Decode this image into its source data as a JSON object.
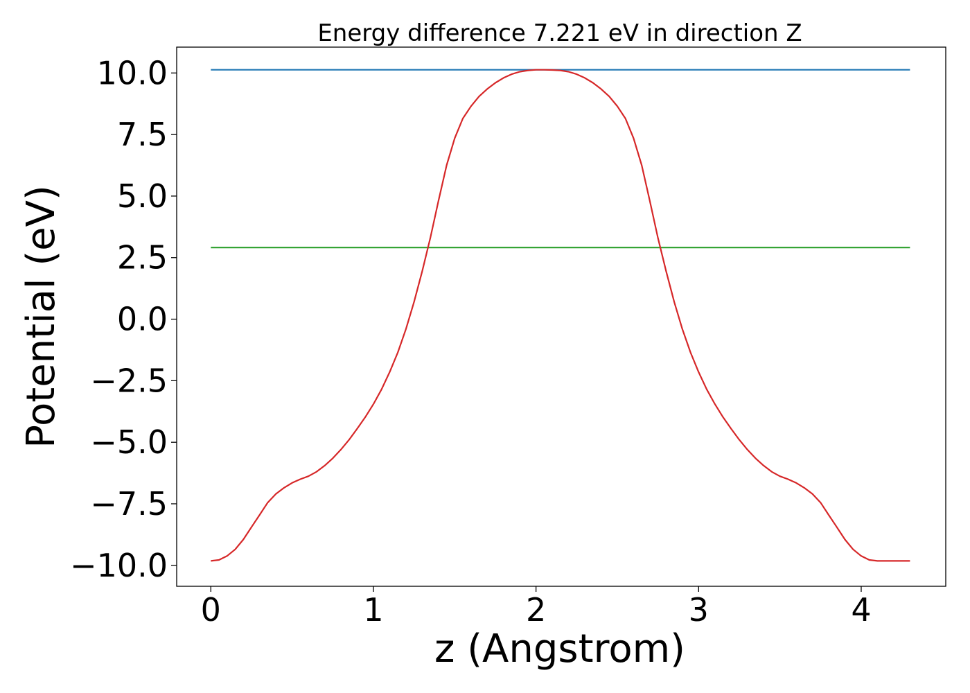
{
  "chart_data": {
    "type": "line",
    "title": "Energy difference 7.221 eV in direction Z",
    "xlabel": "z (Angstrom)",
    "ylabel": "Potential (eV)",
    "xlim": [
      -0.21,
      4.52
    ],
    "ylim": [
      -10.85,
      11.05
    ],
    "x_ticks": [
      0,
      1,
      2,
      3,
      4
    ],
    "x_tick_labels": [
      "0",
      "1",
      "2",
      "3",
      "4"
    ],
    "y_ticks": [
      10.0,
      7.5,
      5.0,
      2.5,
      0.0,
      -2.5,
      -5.0,
      -7.5,
      -10.0
    ],
    "y_tick_labels": [
      "10.0",
      "7.5",
      "5.0",
      "2.5",
      "0.0",
      "−2.5",
      "−5.0",
      "−7.5",
      "−10.0"
    ],
    "grid": false,
    "series": [
      {
        "color": "#1f77b4",
        "x": [
          0.0,
          4.3
        ],
        "y": [
          10.13,
          10.13
        ]
      },
      {
        "color": "#2ca02c",
        "x": [
          0.0,
          4.3
        ],
        "y": [
          2.91,
          2.91
        ]
      },
      {
        "color": "#d62728",
        "x": [
          0.0,
          0.05,
          0.1,
          0.15,
          0.2,
          0.25,
          0.3,
          0.35,
          0.4,
          0.45,
          0.5,
          0.55,
          0.6,
          0.65,
          0.7,
          0.75,
          0.8,
          0.85,
          0.9,
          0.95,
          1.0,
          1.05,
          1.1,
          1.15,
          1.2,
          1.25,
          1.3,
          1.35,
          1.4,
          1.45,
          1.5,
          1.55,
          1.6,
          1.65,
          1.7,
          1.75,
          1.8,
          1.85,
          1.9,
          1.95,
          2.0,
          2.05,
          2.1,
          2.15,
          2.2,
          2.25,
          2.3,
          2.35,
          2.4,
          2.45,
          2.5,
          2.55,
          2.6,
          2.65,
          2.7,
          2.75,
          2.8,
          2.85,
          2.9,
          2.95,
          3.0,
          3.05,
          3.1,
          3.15,
          3.2,
          3.25,
          3.3,
          3.35,
          3.4,
          3.45,
          3.5,
          3.55,
          3.6,
          3.65,
          3.7,
          3.75,
          3.8,
          3.85,
          3.9,
          3.95,
          4.0,
          4.05,
          4.1,
          4.15,
          4.2,
          4.25,
          4.3
        ],
        "y": [
          -9.82,
          -9.78,
          -9.62,
          -9.35,
          -8.95,
          -8.45,
          -7.95,
          -7.45,
          -7.1,
          -6.85,
          -6.65,
          -6.5,
          -6.38,
          -6.2,
          -5.95,
          -5.65,
          -5.3,
          -4.9,
          -4.45,
          -3.98,
          -3.45,
          -2.85,
          -2.15,
          -1.35,
          -0.4,
          0.7,
          1.95,
          3.3,
          4.8,
          6.25,
          7.35,
          8.15,
          8.65,
          9.05,
          9.35,
          9.6,
          9.8,
          9.95,
          10.05,
          10.1,
          10.13,
          10.13,
          10.12,
          10.1,
          10.05,
          9.95,
          9.8,
          9.6,
          9.35,
          9.05,
          8.65,
          8.15,
          7.35,
          6.25,
          4.8,
          3.3,
          1.95,
          0.7,
          -0.4,
          -1.35,
          -2.15,
          -2.85,
          -3.45,
          -3.98,
          -4.45,
          -4.9,
          -5.3,
          -5.65,
          -5.95,
          -6.2,
          -6.38,
          -6.5,
          -6.65,
          -6.85,
          -7.1,
          -7.45,
          -7.95,
          -8.45,
          -8.95,
          -9.35,
          -9.62,
          -9.78,
          -9.82,
          -9.82,
          -9.82,
          -9.82,
          -9.82
        ]
      }
    ]
  }
}
